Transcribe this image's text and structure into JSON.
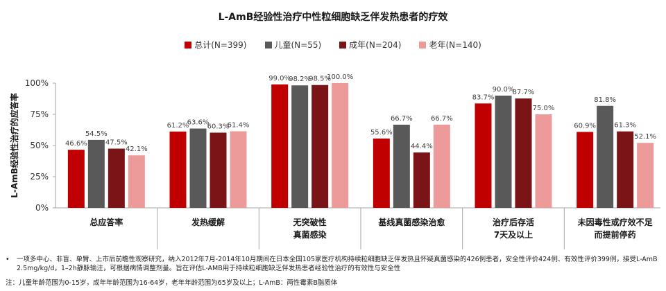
{
  "title": "L-AmB经验性治疗中性粒细胞缺乏伴发热患者的疗效",
  "footnote": {
    "bullet": "•",
    "text": "一项多中心、非盲、单臂、上市后前瞻性观察研究，纳入2012年7月-2014年10月期间在日本全国105家医疗机构持续粒细胞缺乏伴发热且怀疑真菌感染的426例患者，安全性评价424例、有效性评价399例，接受L-AmB 2.5mg/kg/d，1–2h静脉输注，可根据病情调整剂量。旨在评估L-AMB用于持续粒细胞缺乏伴发热患者经验性治疗的有效性与安全性",
    "note": "注：儿童年龄范围为0-15岁，成年年龄范围为16-64岁，老年年龄范围为65岁及以上；L-AmB：两性霉素B脂质体"
  },
  "chart_data": {
    "type": "bar",
    "ylabel": "L-AmB经验性治疗的应答率",
    "ylim": [
      0,
      100
    ],
    "yticks": [
      0,
      25,
      50,
      75,
      100
    ],
    "ytick_labels": [
      "0%",
      "25%",
      "50%",
      "75%",
      "100%"
    ],
    "categories": [
      [
        "总应答率"
      ],
      [
        "发热缓解"
      ],
      [
        "无突破性",
        "真菌感染"
      ],
      [
        "基线真菌感染治愈"
      ],
      [
        "治疗后存活",
        "7天及以上"
      ],
      [
        "未因毒性或疗效不足",
        "而提前停药"
      ]
    ],
    "legend_position": "top",
    "series": [
      {
        "name": "总计(N=399)",
        "color": "#c00000",
        "values": [
          46.6,
          61.2,
          99.0,
          55.6,
          83.7,
          60.9
        ],
        "labels": [
          "46.6%",
          "61.2%",
          "99.0%",
          "55.6%",
          "83.7%",
          "60.9%"
        ]
      },
      {
        "name": "儿童(N=55)",
        "color": "#595959",
        "values": [
          54.5,
          63.6,
          98.2,
          66.7,
          90.0,
          81.8
        ],
        "labels": [
          "54.5%",
          "63.6%",
          "98.2%",
          "66.7%",
          "90.0%",
          "81.8%"
        ]
      },
      {
        "name": "成年(N=204)",
        "color": "#7b1416",
        "values": [
          47.5,
          60.3,
          98.5,
          44.4,
          87.7,
          61.3
        ],
        "labels": [
          "47.5%",
          "60.3%",
          "98.5%",
          "44.4%",
          "87.7%",
          "61.3%"
        ]
      },
      {
        "name": "老年(N=140)",
        "color": "#ed9a9a",
        "values": [
          42.1,
          61.4,
          100.0,
          66.7,
          75.0,
          52.1
        ],
        "labels": [
          "42.1%",
          "61.4%",
          "100.0%",
          "66.7%",
          "75.0%",
          "52.1%"
        ]
      }
    ]
  }
}
